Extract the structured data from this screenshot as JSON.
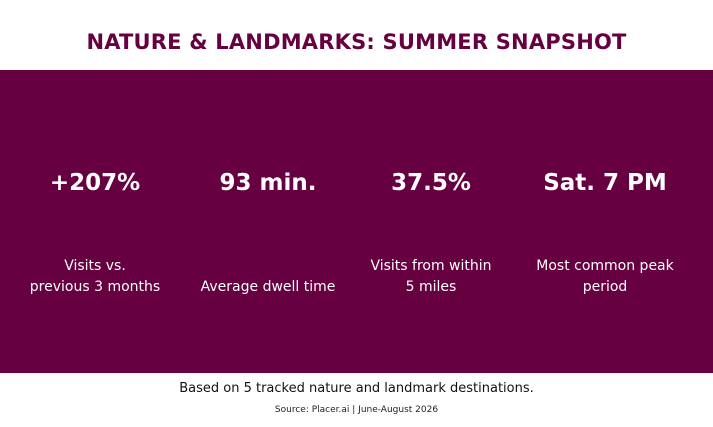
{
  "header": {
    "title": "NATURE & LANDMARKS: SUMMER SNAPSHOT"
  },
  "stats": [
    {
      "value": "+207%",
      "label_lines": [
        "Visits vs.",
        "previous 3 months"
      ]
    },
    {
      "value": "93 min.",
      "label_lines": [
        "Average dwell time"
      ]
    },
    {
      "value": "37.5%",
      "label_lines": [
        "Visits from within",
        "5 miles"
      ]
    },
    {
      "value": "Sat. 7 PM",
      "label_lines": [
        "Most common peak",
        "period"
      ]
    }
  ],
  "footer": {
    "note": "Based on 5 tracked nature and landmark destinations.",
    "source": "Source: Placer.ai | June-August 2026"
  }
}
